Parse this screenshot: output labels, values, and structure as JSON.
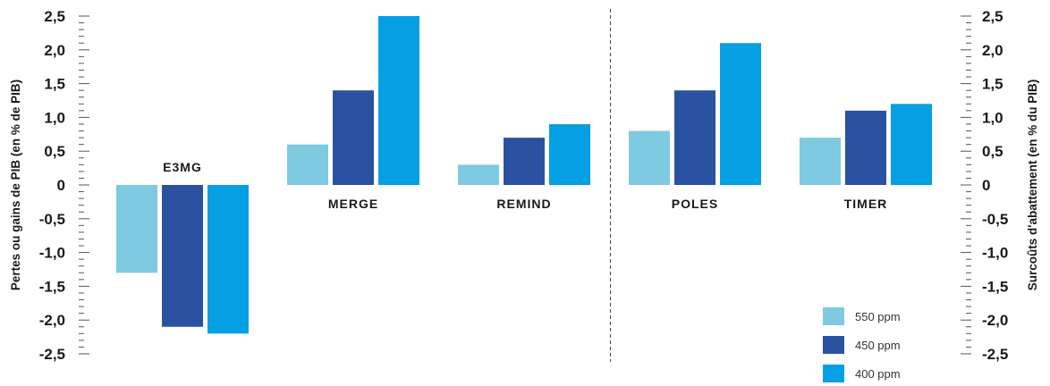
{
  "chart_data": {
    "type": "bar",
    "categories": [
      "E3MG",
      "MERGE",
      "REMIND",
      "POLES",
      "TIMER"
    ],
    "series": [
      {
        "name": "550 ppm",
        "color": "#7ecae0",
        "values": [
          -1.3,
          0.6,
          0.3,
          0.8,
          0.7
        ]
      },
      {
        "name": "450 ppm",
        "color": "#2a52a0",
        "values": [
          -2.1,
          1.4,
          0.7,
          1.4,
          1.1
        ]
      },
      {
        "name": "400 ppm",
        "color": "#059fe3",
        "values": [
          -2.2,
          2.5,
          0.9,
          2.1,
          1.2
        ]
      }
    ],
    "ylim": [
      -2.5,
      2.5
    ],
    "yticks": [
      "2,5",
      "2,0",
      "1,5",
      "1,0",
      "0,5",
      "0",
      "-0,5",
      "-1,0",
      "-1,5",
      "-2,0",
      "-2,5"
    ],
    "ylabel_left": "Pertes ou gains de PIB (en % de PIB)",
    "ylabel_right": "Surcoûts d'abattement (en % du PIB)",
    "legend_position": "bottom-right",
    "grid": false,
    "divider_after_category": "REMIND"
  }
}
